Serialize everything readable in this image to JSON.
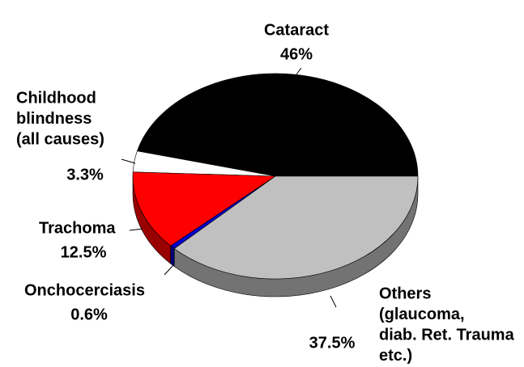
{
  "chart_data": {
    "type": "pie",
    "categories": [
      [
        "Cataract"
      ],
      [
        "Childhood",
        "blindness",
        "(all causes)"
      ],
      [
        "Trachoma"
      ],
      [
        "Onchocerciasis"
      ],
      [
        "Others",
        "(glaucoma,",
        "diab. Ret. Trauma",
        "etc.)"
      ]
    ],
    "values": [
      46,
      3.3,
      12.5,
      0.6,
      37.5
    ],
    "value_labels": [
      "46%",
      "3.3%",
      "12.5%",
      "0.6%",
      "37.5%"
    ],
    "colors": [
      "#000000",
      "#ffffff",
      "#ff0000",
      "#0000cc",
      "#c0c0c0"
    ]
  }
}
